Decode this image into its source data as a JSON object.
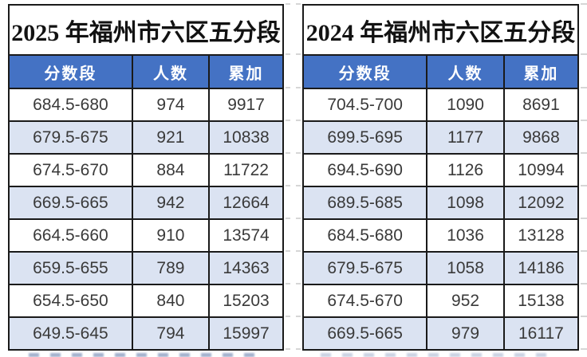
{
  "colors": {
    "header_bg": "#4472C4",
    "header_text": "#FFFFFF",
    "row_bg": "#FFFFFF",
    "row_alt_bg": "#DBE3F2",
    "border": "#1A1A1A",
    "title_text": "#121212",
    "cell_text": "#3A3A3A",
    "gridline_dash": "#D6D6D6"
  },
  "chart_data": [
    {
      "type": "table",
      "title": "2025 年福州市六区五分段",
      "columns": [
        "分数段",
        "人数",
        "累加"
      ],
      "rows": [
        [
          "684.5-680",
          974,
          9917
        ],
        [
          "679.5-675",
          921,
          10838
        ],
        [
          "674.5-670",
          884,
          11722
        ],
        [
          "669.5-665",
          942,
          12664
        ],
        [
          "664.5-660",
          910,
          13574
        ],
        [
          "659.5-655",
          789,
          14363
        ],
        [
          "654.5-650",
          840,
          15203
        ],
        [
          "649.5-645",
          794,
          15997
        ]
      ]
    },
    {
      "type": "table",
      "title": "2024 年福州市六区五分段",
      "columns": [
        "分数段",
        "人数",
        "累加"
      ],
      "rows": [
        [
          "704.5-700",
          1090,
          8691
        ],
        [
          "699.5-695",
          1177,
          9868
        ],
        [
          "694.5-690",
          1126,
          10994
        ],
        [
          "689.5-685",
          1098,
          12092
        ],
        [
          "684.5-680",
          1036,
          13128
        ],
        [
          "679.5-675",
          1058,
          14186
        ],
        [
          "674.5-670",
          952,
          15138
        ],
        [
          "669.5-665",
          979,
          16117
        ]
      ]
    }
  ]
}
